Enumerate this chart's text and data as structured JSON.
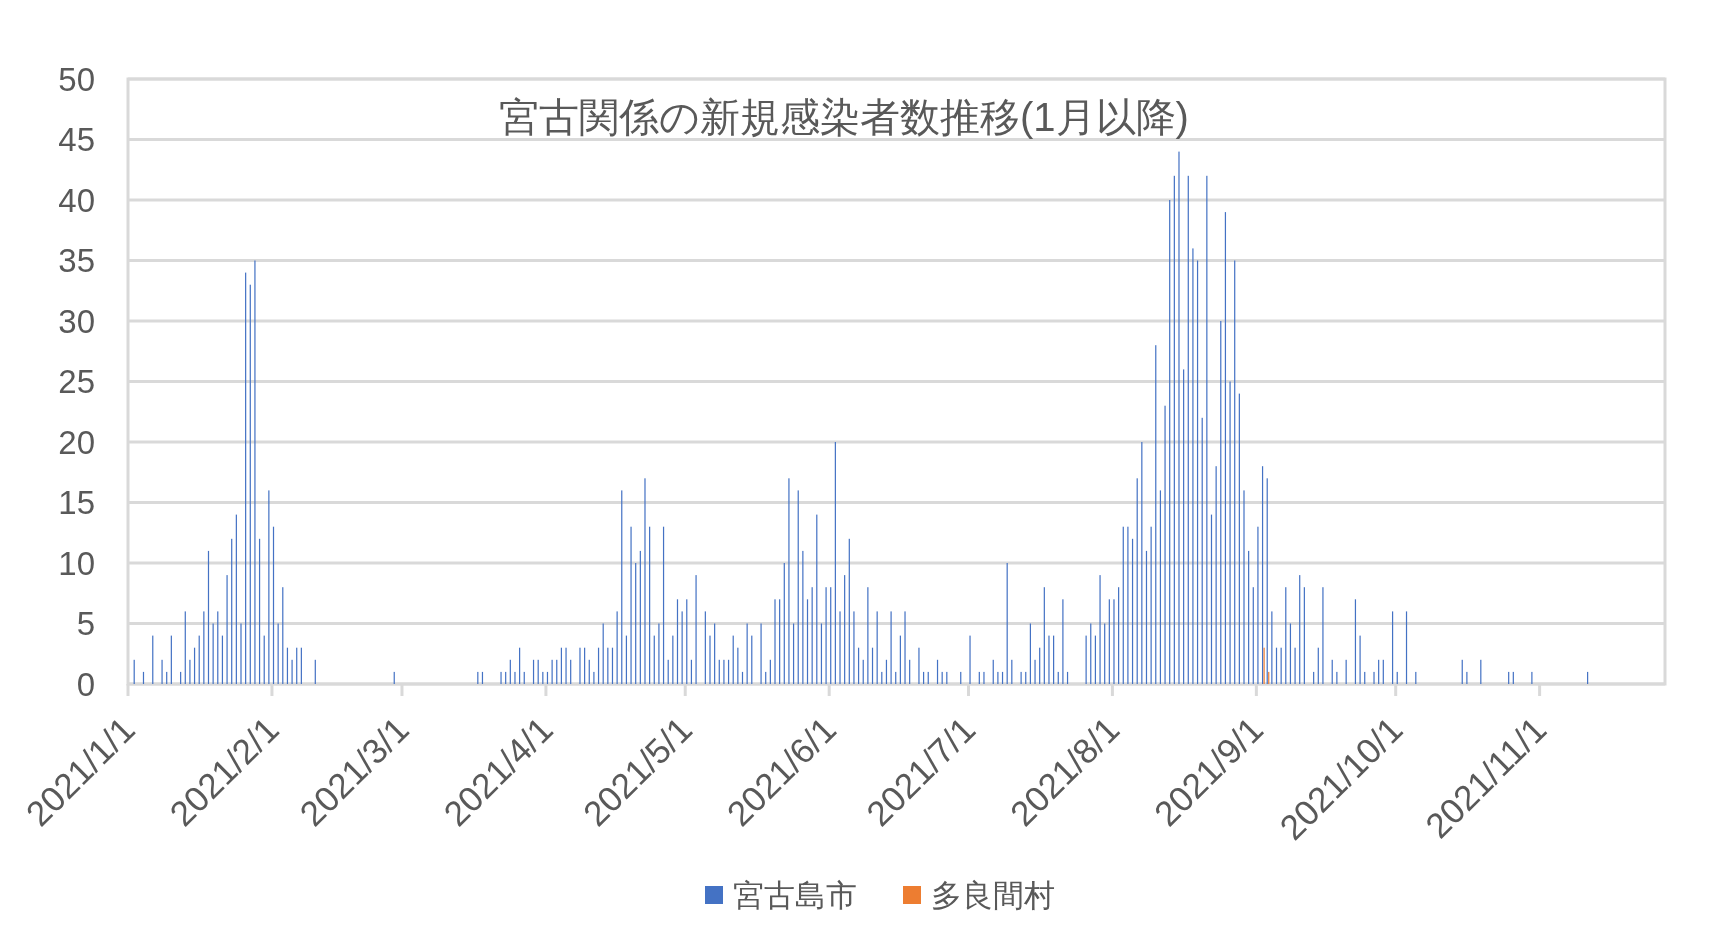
{
  "chart_data": {
    "type": "bar",
    "title": "宮古関係の新規感染者数推移(1月以降)",
    "xlim": [
      "2021-01-01",
      "2021-11-28"
    ],
    "xticks": [
      {
        "value": "2021-01-01",
        "label": "2021/1/1"
      },
      {
        "value": "2021-02-01",
        "label": "2021/2/1"
      },
      {
        "value": "2021-03-01",
        "label": "2021/3/1"
      },
      {
        "value": "2021-04-01",
        "label": "2021/4/1"
      },
      {
        "value": "2021-05-01",
        "label": "2021/5/1"
      },
      {
        "value": "2021-06-01",
        "label": "2021/6/1"
      },
      {
        "value": "2021-07-01",
        "label": "2021/7/1"
      },
      {
        "value": "2021-08-01",
        "label": "2021/8/1"
      },
      {
        "value": "2021-09-01",
        "label": "2021/9/1"
      },
      {
        "value": "2021-10-01",
        "label": "2021/10/1"
      },
      {
        "value": "2021-11-01",
        "label": "2021/11/1"
      }
    ],
    "ylim": [
      0,
      50
    ],
    "yticks": [
      0,
      5,
      10,
      15,
      20,
      25,
      30,
      35,
      40,
      45,
      50
    ],
    "grid": "y",
    "legend": "bottom",
    "series": [
      {
        "name": "宮古島市",
        "color": "#4472c4",
        "x": [
          "2021-01-02",
          "2021-01-04",
          "2021-01-06",
          "2021-01-08",
          "2021-01-09",
          "2021-01-10",
          "2021-01-12",
          "2021-01-13",
          "2021-01-14",
          "2021-01-15",
          "2021-01-16",
          "2021-01-17",
          "2021-01-18",
          "2021-01-19",
          "2021-01-20",
          "2021-01-21",
          "2021-01-22",
          "2021-01-23",
          "2021-01-24",
          "2021-01-25",
          "2021-01-26",
          "2021-01-27",
          "2021-01-28",
          "2021-01-29",
          "2021-01-30",
          "2021-01-31",
          "2021-02-01",
          "2021-02-02",
          "2021-02-03",
          "2021-02-04",
          "2021-02-05",
          "2021-02-06",
          "2021-02-07",
          "2021-02-10",
          "2021-02-27",
          "2021-03-17",
          "2021-03-18",
          "2021-03-22",
          "2021-03-23",
          "2021-03-24",
          "2021-03-25",
          "2021-03-26",
          "2021-03-27",
          "2021-03-29",
          "2021-03-30",
          "2021-03-31",
          "2021-04-01",
          "2021-04-02",
          "2021-04-03",
          "2021-04-04",
          "2021-04-05",
          "2021-04-06",
          "2021-04-08",
          "2021-04-09",
          "2021-04-10",
          "2021-04-11",
          "2021-04-12",
          "2021-04-13",
          "2021-04-14",
          "2021-04-15",
          "2021-04-16",
          "2021-04-17",
          "2021-04-18",
          "2021-04-19",
          "2021-04-20",
          "2021-04-21",
          "2021-04-22",
          "2021-04-23",
          "2021-04-24",
          "2021-04-25",
          "2021-04-26",
          "2021-04-27",
          "2021-04-28",
          "2021-04-29",
          "2021-04-30",
          "2021-05-01",
          "2021-05-02",
          "2021-05-03",
          "2021-05-05",
          "2021-05-06",
          "2021-05-07",
          "2021-05-08",
          "2021-05-09",
          "2021-05-10",
          "2021-05-11",
          "2021-05-12",
          "2021-05-13",
          "2021-05-14",
          "2021-05-15",
          "2021-05-17",
          "2021-05-18",
          "2021-05-19",
          "2021-05-20",
          "2021-05-21",
          "2021-05-22",
          "2021-05-23",
          "2021-05-24",
          "2021-05-25",
          "2021-05-26",
          "2021-05-27",
          "2021-05-28",
          "2021-05-29",
          "2021-05-30",
          "2021-05-31",
          "2021-06-01",
          "2021-06-02",
          "2021-06-03",
          "2021-06-04",
          "2021-06-05",
          "2021-06-06",
          "2021-06-07",
          "2021-06-08",
          "2021-06-09",
          "2021-06-10",
          "2021-06-11",
          "2021-06-12",
          "2021-06-13",
          "2021-06-14",
          "2021-06-15",
          "2021-06-16",
          "2021-06-17",
          "2021-06-18",
          "2021-06-20",
          "2021-06-21",
          "2021-06-22",
          "2021-06-24",
          "2021-06-25",
          "2021-06-26",
          "2021-06-29",
          "2021-07-01",
          "2021-07-03",
          "2021-07-04",
          "2021-07-06",
          "2021-07-07",
          "2021-07-08",
          "2021-07-09",
          "2021-07-10",
          "2021-07-12",
          "2021-07-13",
          "2021-07-14",
          "2021-07-15",
          "2021-07-16",
          "2021-07-17",
          "2021-07-18",
          "2021-07-19",
          "2021-07-20",
          "2021-07-21",
          "2021-07-22",
          "2021-07-26",
          "2021-07-27",
          "2021-07-28",
          "2021-07-29",
          "2021-07-30",
          "2021-07-31",
          "2021-08-01",
          "2021-08-02",
          "2021-08-03",
          "2021-08-04",
          "2021-08-05",
          "2021-08-06",
          "2021-08-07",
          "2021-08-08",
          "2021-08-09",
          "2021-08-10",
          "2021-08-11",
          "2021-08-12",
          "2021-08-13",
          "2021-08-14",
          "2021-08-15",
          "2021-08-16",
          "2021-08-17",
          "2021-08-18",
          "2021-08-19",
          "2021-08-20",
          "2021-08-21",
          "2021-08-22",
          "2021-08-23",
          "2021-08-24",
          "2021-08-25",
          "2021-08-26",
          "2021-08-27",
          "2021-08-28",
          "2021-08-29",
          "2021-08-30",
          "2021-08-31",
          "2021-09-01",
          "2021-09-02",
          "2021-09-03",
          "2021-09-04",
          "2021-09-05",
          "2021-09-06",
          "2021-09-07",
          "2021-09-08",
          "2021-09-09",
          "2021-09-10",
          "2021-09-11",
          "2021-09-13",
          "2021-09-14",
          "2021-09-15",
          "2021-09-17",
          "2021-09-18",
          "2021-09-20",
          "2021-09-22",
          "2021-09-23",
          "2021-09-24",
          "2021-09-26",
          "2021-09-27",
          "2021-09-28",
          "2021-09-30",
          "2021-10-01",
          "2021-10-03",
          "2021-10-05",
          "2021-10-15",
          "2021-10-16",
          "2021-10-19",
          "2021-10-25",
          "2021-10-26",
          "2021-10-30",
          "2021-11-11"
        ],
        "values": [
          2,
          1,
          4,
          2,
          1,
          4,
          1,
          6,
          2,
          3,
          4,
          6,
          11,
          5,
          6,
          4,
          9,
          12,
          14,
          5,
          34,
          33,
          35,
          12,
          4,
          16,
          13,
          5,
          8,
          3,
          2,
          3,
          3,
          2,
          1,
          1,
          1,
          1,
          1,
          2,
          1,
          3,
          1,
          2,
          2,
          1,
          1,
          2,
          2,
          3,
          3,
          2,
          3,
          3,
          2,
          1,
          3,
          5,
          3,
          3,
          6,
          16,
          4,
          13,
          10,
          11,
          17,
          13,
          4,
          5,
          13,
          2,
          4,
          7,
          6,
          7,
          2,
          9,
          6,
          4,
          5,
          2,
          2,
          2,
          4,
          3,
          1,
          5,
          4,
          5,
          1,
          2,
          7,
          7,
          10,
          17,
          5,
          16,
          11,
          7,
          8,
          14,
          5,
          8,
          8,
          20,
          6,
          9,
          12,
          6,
          3,
          2,
          8,
          3,
          6,
          1,
          2,
          6,
          1,
          4,
          6,
          2,
          3,
          1,
          1,
          2,
          1,
          1,
          1,
          4,
          1,
          1,
          2,
          1,
          1,
          10,
          2,
          1,
          1,
          5,
          2,
          3,
          8,
          4,
          4,
          1,
          7,
          1,
          4,
          5,
          4,
          9,
          5,
          7,
          7,
          8,
          13,
          13,
          12,
          17,
          20,
          11,
          13,
          28,
          16,
          23,
          40,
          42,
          44,
          26,
          42,
          36,
          35,
          22,
          42,
          14,
          18,
          30,
          39,
          25,
          35,
          24,
          16,
          11,
          8,
          13,
          18,
          17,
          6,
          3,
          3,
          8,
          5,
          3,
          9,
          8,
          1,
          3,
          8,
          2,
          1,
          2,
          7,
          4,
          1,
          1,
          2,
          2,
          6,
          1,
          6,
          1,
          2,
          1,
          2,
          1,
          1,
          1,
          1
        ]
      },
      {
        "name": "多良間村",
        "color": "#ed7d31",
        "x": [
          "2021-09-02",
          "2021-09-03"
        ],
        "values": [
          3,
          1
        ]
      }
    ]
  }
}
